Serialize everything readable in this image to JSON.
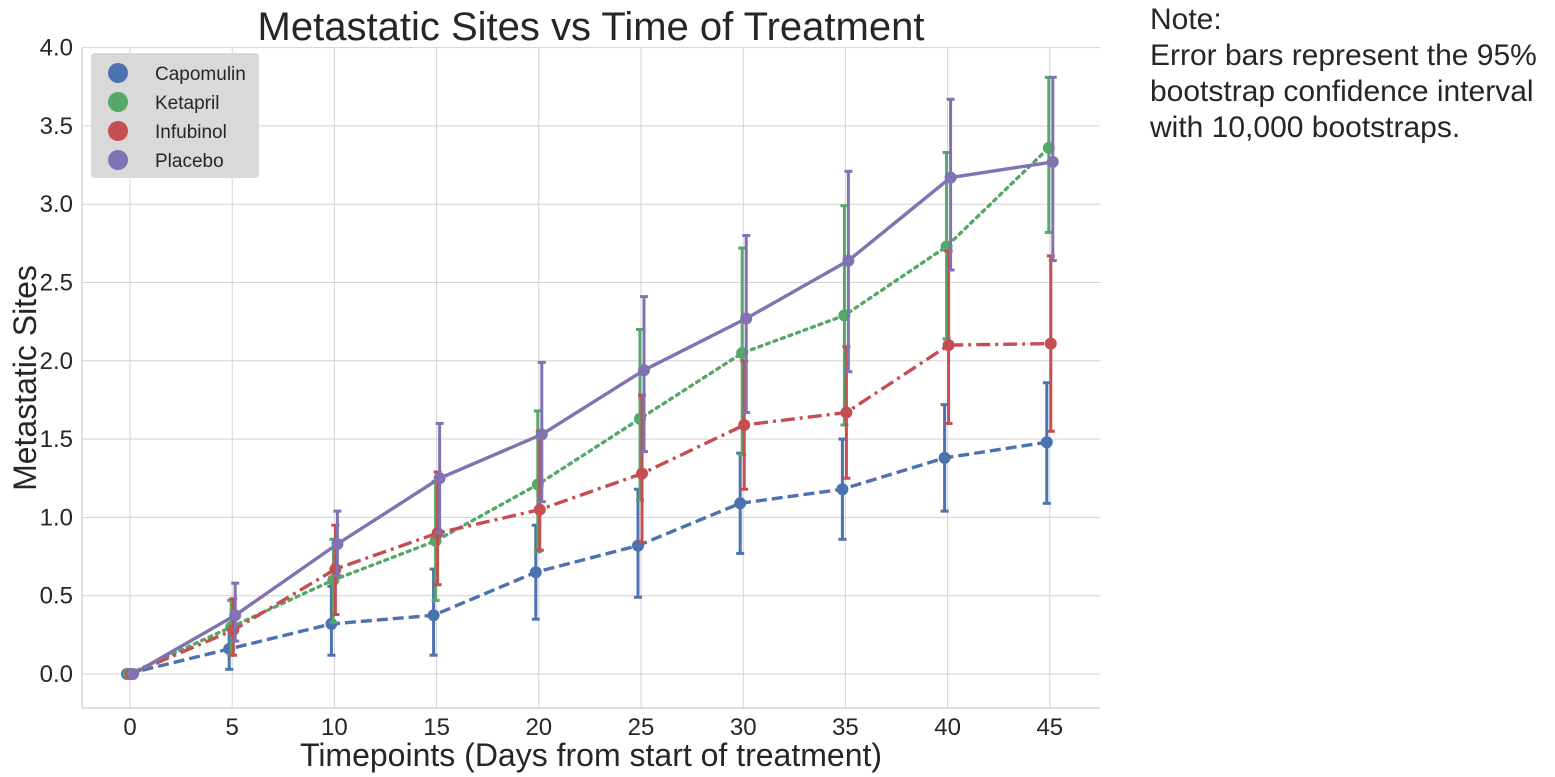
{
  "chart_data": {
    "type": "line",
    "title": "Metastatic Sites vs Time of Treatment",
    "xlabel": "Timepoints (Days from start of treatment)",
    "ylabel": "Metastatic Sites",
    "x": [
      0,
      5,
      10,
      15,
      20,
      25,
      30,
      35,
      40,
      45
    ],
    "xticks": [
      "0",
      "5",
      "10",
      "15",
      "20",
      "25",
      "30",
      "35",
      "40",
      "45"
    ],
    "yticks": [
      "0.0",
      "0.5",
      "1.0",
      "1.5",
      "2.0",
      "2.5",
      "3.0",
      "3.5",
      "4.0"
    ],
    "ylim": [
      -0.2,
      4.0
    ],
    "grid": true,
    "legend_position": "top-left",
    "series": [
      {
        "name": "Capomulin",
        "color": "#4c72b0",
        "line_style": "dashed",
        "values": [
          0.0,
          0.16,
          0.32,
          0.375,
          0.65,
          0.82,
          1.09,
          1.18,
          1.38,
          1.48
        ],
        "ci_low": [
          0.0,
          0.03,
          0.12,
          0.12,
          0.35,
          0.49,
          0.77,
          0.86,
          1.04,
          1.09
        ],
        "ci_high": [
          0.0,
          0.29,
          0.56,
          0.67,
          0.95,
          1.18,
          1.41,
          1.5,
          1.72,
          1.86
        ]
      },
      {
        "name": "Ketapril",
        "color": "#55a868",
        "line_style": "dotted",
        "values": [
          0.0,
          0.3,
          0.6,
          0.85,
          1.21,
          1.63,
          2.05,
          2.29,
          2.73,
          3.36
        ],
        "ci_low": [
          0.0,
          0.12,
          0.33,
          0.47,
          0.78,
          1.11,
          1.4,
          1.59,
          2.14,
          2.82
        ],
        "ci_high": [
          0.0,
          0.47,
          0.86,
          1.23,
          1.68,
          2.2,
          2.72,
          2.99,
          3.33,
          3.81
        ]
      },
      {
        "name": "Infubinol",
        "color": "#c44e52",
        "line_style": "dashdot",
        "values": [
          0.0,
          0.28,
          0.67,
          0.9,
          1.05,
          1.28,
          1.59,
          1.67,
          2.1,
          2.11
        ],
        "ci_low": [
          0.0,
          0.12,
          0.38,
          0.57,
          0.79,
          0.84,
          1.18,
          1.25,
          1.6,
          1.55
        ],
        "ci_high": [
          0.0,
          0.48,
          0.95,
          1.29,
          1.55,
          1.78,
          2.0,
          2.09,
          2.7,
          2.67
        ]
      },
      {
        "name": "Placebo",
        "color": "#8172b2",
        "line_style": "solid",
        "values": [
          0.0,
          0.375,
          0.83,
          1.25,
          1.53,
          1.94,
          2.27,
          2.64,
          3.17,
          3.27
        ],
        "ci_low": [
          0.0,
          0.21,
          0.63,
          0.9,
          1.1,
          1.42,
          1.67,
          1.93,
          2.58,
          2.64
        ],
        "ci_high": [
          0.0,
          0.58,
          1.04,
          1.6,
          1.99,
          2.41,
          2.8,
          3.21,
          3.67,
          3.81
        ]
      }
    ]
  },
  "note": {
    "lines": [
      "Note:",
      "Error bars represent the 95%",
      "bootstrap confidence interval",
      "with 10,000 bootstraps."
    ]
  }
}
